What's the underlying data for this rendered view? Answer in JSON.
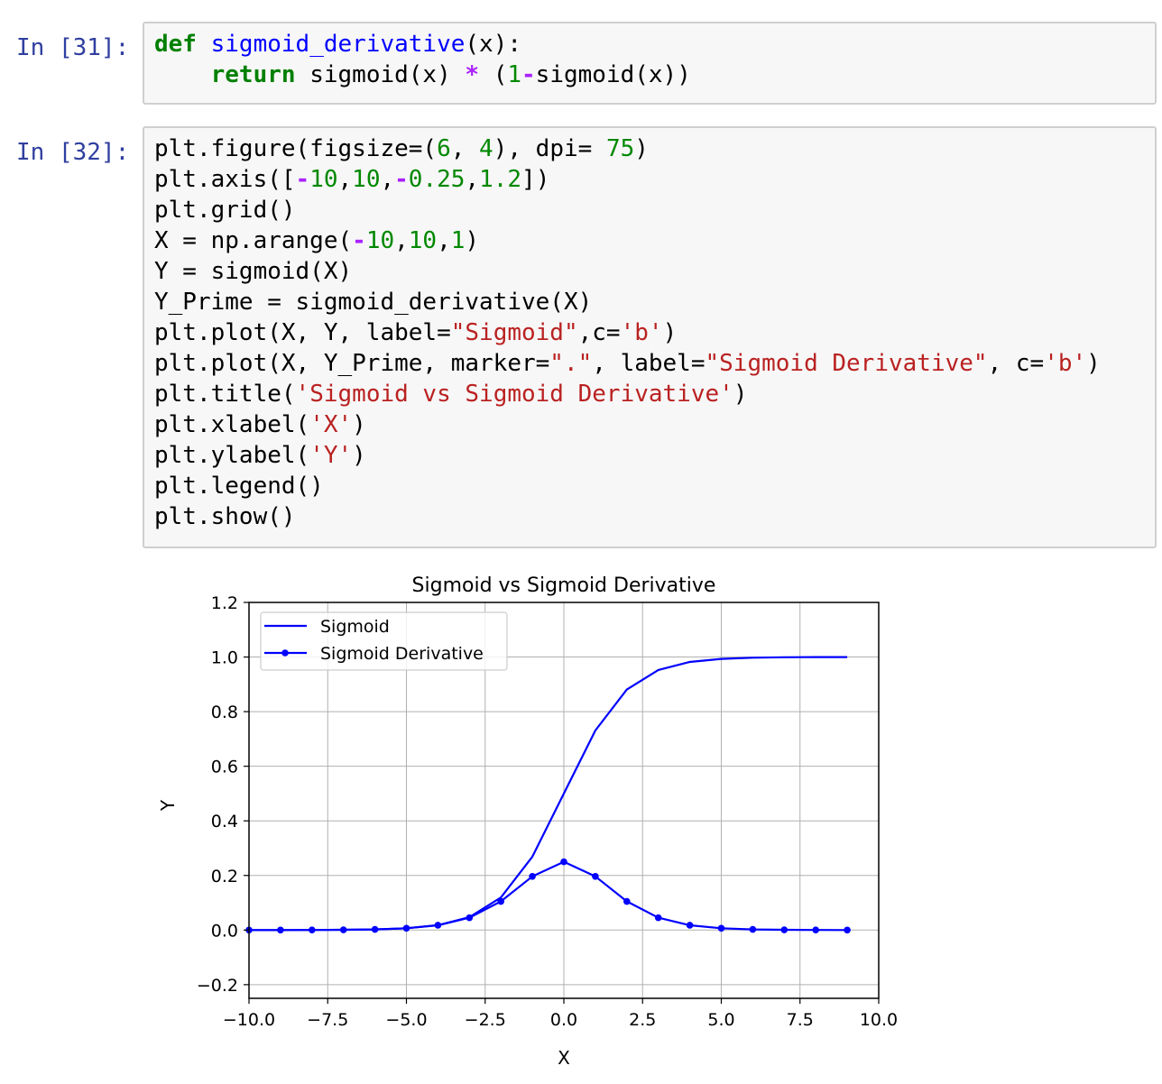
{
  "cells": [
    {
      "prompt": "In [31]:",
      "lines": [
        [
          [
            "kw",
            "def"
          ],
          [
            "plain",
            " "
          ],
          [
            "fn",
            "sigmoid_derivative"
          ],
          [
            "plain",
            "(x):"
          ]
        ],
        [
          [
            "plain",
            "    "
          ],
          [
            "kw",
            "return"
          ],
          [
            "plain",
            " sigmoid(x) "
          ],
          [
            "op",
            "*"
          ],
          [
            "plain",
            " ("
          ],
          [
            "num",
            "1"
          ],
          [
            "op",
            "-"
          ],
          [
            "plain",
            "sigmoid(x))"
          ]
        ]
      ]
    },
    {
      "prompt": "In [32]:",
      "lines": [
        [
          [
            "plain",
            "plt.figure(figsize=("
          ],
          [
            "num",
            "6"
          ],
          [
            "plain",
            ", "
          ],
          [
            "num",
            "4"
          ],
          [
            "plain",
            "), dpi= "
          ],
          [
            "num",
            "75"
          ],
          [
            "plain",
            ")"
          ]
        ],
        [
          [
            "plain",
            "plt.axis(["
          ],
          [
            "op",
            "-"
          ],
          [
            "num",
            "10"
          ],
          [
            "plain",
            ","
          ],
          [
            "num",
            "10"
          ],
          [
            "plain",
            ","
          ],
          [
            "op",
            "-"
          ],
          [
            "num",
            "0.25"
          ],
          [
            "plain",
            ","
          ],
          [
            "num",
            "1.2"
          ],
          [
            "plain",
            "])"
          ]
        ],
        [
          [
            "plain",
            "plt.grid()"
          ]
        ],
        [
          [
            "plain",
            "X = np.arange("
          ],
          [
            "op",
            "-"
          ],
          [
            "num",
            "10"
          ],
          [
            "plain",
            ","
          ],
          [
            "num",
            "10"
          ],
          [
            "plain",
            ","
          ],
          [
            "num",
            "1"
          ],
          [
            "plain",
            ")"
          ]
        ],
        [
          [
            "plain",
            "Y = sigmoid(X)"
          ]
        ],
        [
          [
            "plain",
            "Y_Prime = sigmoid_derivative(X)"
          ]
        ],
        [
          [
            "plain",
            "plt.plot(X, Y, label="
          ],
          [
            "str",
            "\"Sigmoid\""
          ],
          [
            "plain",
            ",c="
          ],
          [
            "str",
            "'b'"
          ],
          [
            "plain",
            ")"
          ]
        ],
        [
          [
            "plain",
            "plt.plot(X, Y_Prime, marker="
          ],
          [
            "str",
            "\".\""
          ],
          [
            "plain",
            ", label="
          ],
          [
            "str",
            "\"Sigmoid Derivative\""
          ],
          [
            "plain",
            ", c="
          ],
          [
            "str",
            "'b'"
          ],
          [
            "plain",
            ")"
          ]
        ],
        [
          [
            "plain",
            "plt.title("
          ],
          [
            "str",
            "'Sigmoid vs Sigmoid Derivative'"
          ],
          [
            "plain",
            ")"
          ]
        ],
        [
          [
            "plain",
            "plt.xlabel("
          ],
          [
            "str",
            "'X'"
          ],
          [
            "plain",
            ")"
          ]
        ],
        [
          [
            "plain",
            "plt.ylabel("
          ],
          [
            "str",
            "'Y'"
          ],
          [
            "plain",
            ")"
          ]
        ],
        [
          [
            "plain",
            "plt.legend()"
          ]
        ],
        [
          [
            "plain",
            "plt.show()"
          ]
        ]
      ]
    }
  ],
  "chart_data": {
    "type": "line",
    "title": "Sigmoid vs Sigmoid Derivative",
    "xlabel": "X",
    "ylabel": "Y",
    "xlim": [
      -10,
      10
    ],
    "ylim": [
      -0.25,
      1.2
    ],
    "x_ticks": [
      "−10.0",
      "−7.5",
      "−5.0",
      "−2.5",
      "0.0",
      "2.5",
      "5.0",
      "7.5",
      "10.0"
    ],
    "x_tick_values": [
      -10,
      -7.5,
      -5,
      -2.5,
      0,
      2.5,
      5,
      7.5,
      10
    ],
    "y_ticks": [
      "−0.2",
      "0.0",
      "0.2",
      "0.4",
      "0.6",
      "0.8",
      "1.0",
      "1.2"
    ],
    "y_tick_values": [
      -0.2,
      0,
      0.2,
      0.4,
      0.6,
      0.8,
      1.0,
      1.2
    ],
    "grid": true,
    "legend_position": "top-left",
    "color": "#0000ff",
    "x": [
      -10,
      -9,
      -8,
      -7,
      -6,
      -5,
      -4,
      -3,
      -2,
      -1,
      0,
      1,
      2,
      3,
      4,
      5,
      6,
      7,
      8,
      9
    ],
    "series": [
      {
        "name": "Sigmoid",
        "marker": "none",
        "values": [
          4.54e-05,
          0.000123,
          0.000335,
          0.000911,
          0.00247,
          0.00669,
          0.018,
          0.0474,
          0.1192,
          0.2689,
          0.5,
          0.7311,
          0.8808,
          0.9526,
          0.982,
          0.9933,
          0.9975,
          0.9991,
          0.9997,
          0.9999
        ]
      },
      {
        "name": "Sigmoid Derivative",
        "marker": "dot",
        "values": [
          4.54e-05,
          0.000123,
          0.000335,
          0.00091,
          0.00247,
          0.00665,
          0.0177,
          0.0452,
          0.105,
          0.1966,
          0.25,
          0.1966,
          0.105,
          0.0452,
          0.0177,
          0.00665,
          0.00247,
          0.00091,
          0.000335,
          0.000123
        ]
      }
    ]
  }
}
